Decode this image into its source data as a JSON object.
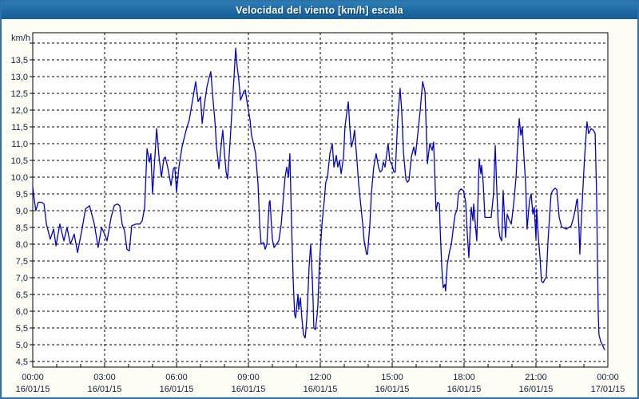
{
  "window": {
    "title": "Velocidad del viento [km/h] escala"
  },
  "colors": {
    "titlebar_top": "#2f7db5",
    "titlebar_bottom": "#175d93",
    "window_border": "#2a72a8",
    "background": "#fdfdf6",
    "plot_background": "#ffffff",
    "grid": "#000000",
    "series": "#0000cc",
    "label_text": "#0c2233",
    "title_text": "#ffffff"
  },
  "chart_data": {
    "type": "line",
    "title": "Velocidad del viento [km/h] escala",
    "y_unit_label": "km/h",
    "series_color": "#0000cc",
    "grid": "dashed",
    "legend": "none",
    "ylim": [
      4.5,
      14.0
    ],
    "y_step": 0.5,
    "x_hours_range": [
      0,
      24
    ],
    "x_minor_step_hours": 1,
    "y_unit": {
      "v": 14.0,
      "label": "km/h"
    },
    "y_ticks": [
      {
        "v": 13.5,
        "label": "13,5"
      },
      {
        "v": 13.0,
        "label": "13,0"
      },
      {
        "v": 12.5,
        "label": "12,5"
      },
      {
        "v": 12.0,
        "label": "12,0"
      },
      {
        "v": 11.5,
        "label": "11,5"
      },
      {
        "v": 11.0,
        "label": "11,0"
      },
      {
        "v": 10.5,
        "label": "10,5"
      },
      {
        "v": 10.0,
        "label": "10,0"
      },
      {
        "v": 9.5,
        "label": "9,5"
      },
      {
        "v": 9.0,
        "label": "9,0"
      },
      {
        "v": 8.5,
        "label": "8,5"
      },
      {
        "v": 8.0,
        "label": "8,0"
      },
      {
        "v": 7.5,
        "label": "7,5"
      },
      {
        "v": 7.0,
        "label": "7,0"
      },
      {
        "v": 6.5,
        "label": "6,5"
      },
      {
        "v": 6.0,
        "label": "6,0"
      },
      {
        "v": 5.5,
        "label": "5,5"
      },
      {
        "v": 5.0,
        "label": "5,0"
      },
      {
        "v": 4.5,
        "label": "4,5"
      }
    ],
    "x_ticks": [
      {
        "h": 0,
        "time": "00:00",
        "date": "16/01/15"
      },
      {
        "h": 3,
        "time": "03:00",
        "date": "16/01/15"
      },
      {
        "h": 6,
        "time": "06:00",
        "date": "16/01/15"
      },
      {
        "h": 9,
        "time": "09:00",
        "date": "16/01/15"
      },
      {
        "h": 12,
        "time": "12:00",
        "date": "16/01/15"
      },
      {
        "h": 15,
        "time": "15:00",
        "date": "16/01/15"
      },
      {
        "h": 18,
        "time": "18:00",
        "date": "16/01/15"
      },
      {
        "h": 21,
        "time": "21:00",
        "date": "16/01/15"
      },
      {
        "h": 24,
        "time": "00:00",
        "date": "17/01/15"
      }
    ],
    "points": [
      [
        0,
        9.7
      ],
      [
        0.07,
        9.3
      ],
      [
        0.13,
        9.0
      ],
      [
        0.23,
        9.25
      ],
      [
        0.37,
        9.25
      ],
      [
        0.47,
        9.2
      ],
      [
        0.57,
        8.6
      ],
      [
        0.73,
        8.15
      ],
      [
        0.87,
        8.45
      ],
      [
        0.97,
        7.95
      ],
      [
        1.13,
        8.6
      ],
      [
        1.3,
        8.1
      ],
      [
        1.43,
        8.5
      ],
      [
        1.57,
        8.0
      ],
      [
        1.73,
        8.3
      ],
      [
        1.87,
        7.75
      ],
      [
        2.07,
        8.5
      ],
      [
        2.2,
        9.05
      ],
      [
        2.37,
        9.15
      ],
      [
        2.57,
        8.6
      ],
      [
        2.73,
        7.9
      ],
      [
        2.87,
        8.5
      ],
      [
        3.0,
        8.3
      ],
      [
        3.1,
        8.1
      ],
      [
        3.27,
        8.8
      ],
      [
        3.4,
        9.15
      ],
      [
        3.53,
        9.2
      ],
      [
        3.63,
        9.15
      ],
      [
        3.73,
        8.6
      ],
      [
        3.83,
        8.4
      ],
      [
        3.93,
        7.85
      ],
      [
        4.03,
        7.8
      ],
      [
        4.13,
        8.55
      ],
      [
        4.3,
        8.6
      ],
      [
        4.47,
        8.6
      ],
      [
        4.57,
        8.7
      ],
      [
        4.67,
        9.1
      ],
      [
        4.77,
        10.85
      ],
      [
        4.87,
        10.45
      ],
      [
        4.93,
        10.7
      ],
      [
        5.0,
        9.5
      ],
      [
        5.17,
        11.45
      ],
      [
        5.27,
        10.6
      ],
      [
        5.37,
        10.0
      ],
      [
        5.47,
        10.55
      ],
      [
        5.53,
        10.6
      ],
      [
        5.63,
        10.3
      ],
      [
        5.77,
        9.75
      ],
      [
        5.87,
        10.25
      ],
      [
        5.93,
        10.3
      ],
      [
        6.0,
        9.55
      ],
      [
        6.1,
        10.3
      ],
      [
        6.23,
        10.9
      ],
      [
        6.4,
        11.4
      ],
      [
        6.53,
        11.7
      ],
      [
        6.67,
        12.3
      ],
      [
        6.8,
        12.85
      ],
      [
        6.9,
        12.25
      ],
      [
        7.0,
        12.4
      ],
      [
        7.07,
        11.6
      ],
      [
        7.17,
        12.2
      ],
      [
        7.27,
        12.7
      ],
      [
        7.37,
        13.0
      ],
      [
        7.43,
        13.15
      ],
      [
        7.53,
        12.25
      ],
      [
        7.6,
        11.7
      ],
      [
        7.67,
        10.9
      ],
      [
        7.77,
        10.25
      ],
      [
        7.87,
        11.0
      ],
      [
        7.93,
        11.4
      ],
      [
        8.0,
        10.7
      ],
      [
        8.07,
        10.15
      ],
      [
        8.13,
        9.95
      ],
      [
        8.23,
        11.0
      ],
      [
        8.33,
        12.2
      ],
      [
        8.4,
        13.0
      ],
      [
        8.47,
        13.85
      ],
      [
        8.53,
        13.3
      ],
      [
        8.6,
        12.9
      ],
      [
        8.67,
        12.3
      ],
      [
        8.73,
        12.4
      ],
      [
        8.8,
        12.55
      ],
      [
        8.87,
        12.6
      ],
      [
        8.93,
        12.3
      ],
      [
        9.0,
        12.0
      ],
      [
        9.07,
        11.7
      ],
      [
        9.13,
        11.25
      ],
      [
        9.23,
        10.95
      ],
      [
        9.3,
        10.7
      ],
      [
        9.4,
        9.8
      ],
      [
        9.47,
        8.6
      ],
      [
        9.53,
        8.0
      ],
      [
        9.63,
        8.05
      ],
      [
        9.7,
        7.85
      ],
      [
        9.77,
        8.0
      ],
      [
        9.87,
        9.25
      ],
      [
        9.9,
        9.3
      ],
      [
        10.0,
        8.15
      ],
      [
        10.07,
        7.9
      ],
      [
        10.17,
        8.0
      ],
      [
        10.27,
        8.1
      ],
      [
        10.37,
        8.6
      ],
      [
        10.47,
        9.5
      ],
      [
        10.53,
        10.0
      ],
      [
        10.6,
        10.3
      ],
      [
        10.67,
        10.0
      ],
      [
        10.73,
        10.7
      ],
      [
        10.8,
        8.6
      ],
      [
        10.87,
        6.9
      ],
      [
        10.93,
        5.9
      ],
      [
        10.97,
        5.8
      ],
      [
        11.07,
        6.5
      ],
      [
        11.1,
        6.05
      ],
      [
        11.17,
        6.4
      ],
      [
        11.23,
        5.8
      ],
      [
        11.3,
        5.3
      ],
      [
        11.37,
        5.2
      ],
      [
        11.43,
        5.7
      ],
      [
        11.47,
        6.25
      ],
      [
        11.53,
        7.3
      ],
      [
        11.6,
        8.0
      ],
      [
        11.67,
        6.9
      ],
      [
        11.7,
        6.3
      ],
      [
        11.73,
        5.5
      ],
      [
        11.8,
        5.45
      ],
      [
        11.87,
        5.9
      ],
      [
        11.9,
        6.2
      ],
      [
        11.97,
        7.5
      ],
      [
        12.07,
        8.6
      ],
      [
        12.17,
        9.35
      ],
      [
        12.23,
        9.85
      ],
      [
        12.3,
        10.0
      ],
      [
        12.4,
        10.7
      ],
      [
        12.5,
        11.0
      ],
      [
        12.57,
        10.3
      ],
      [
        12.67,
        10.65
      ],
      [
        12.73,
        10.3
      ],
      [
        12.8,
        10.5
      ],
      [
        12.87,
        10.1
      ],
      [
        12.97,
        10.6
      ],
      [
        13.03,
        11.5
      ],
      [
        13.1,
        11.9
      ],
      [
        13.17,
        12.25
      ],
      [
        13.23,
        11.5
      ],
      [
        13.3,
        10.9
      ],
      [
        13.37,
        11.1
      ],
      [
        13.43,
        11.4
      ],
      [
        13.53,
        10.5
      ],
      [
        13.6,
        9.8
      ],
      [
        13.7,
        9.1
      ],
      [
        13.77,
        8.6
      ],
      [
        13.83,
        8.1
      ],
      [
        13.93,
        7.7
      ],
      [
        13.97,
        7.7
      ],
      [
        14.07,
        8.6
      ],
      [
        14.13,
        9.5
      ],
      [
        14.23,
        10.3
      ],
      [
        14.33,
        10.7
      ],
      [
        14.43,
        10.3
      ],
      [
        14.5,
        10.15
      ],
      [
        14.57,
        10.2
      ],
      [
        14.63,
        10.45
      ],
      [
        14.7,
        10.3
      ],
      [
        14.83,
        11.0
      ],
      [
        14.9,
        10.5
      ],
      [
        15.0,
        10.35
      ],
      [
        15.07,
        10.15
      ],
      [
        15.13,
        10.15
      ],
      [
        15.23,
        11.7
      ],
      [
        15.33,
        12.65
      ],
      [
        15.4,
        11.95
      ],
      [
        15.47,
        10.75
      ],
      [
        15.57,
        9.95
      ],
      [
        15.63,
        9.85
      ],
      [
        15.7,
        9.9
      ],
      [
        15.8,
        10.6
      ],
      [
        15.9,
        10.9
      ],
      [
        15.97,
        10.65
      ],
      [
        16.07,
        11.3
      ],
      [
        16.17,
        12.0
      ],
      [
        16.27,
        12.85
      ],
      [
        16.37,
        12.55
      ],
      [
        16.47,
        10.4
      ],
      [
        16.57,
        11.0
      ],
      [
        16.67,
        10.8
      ],
      [
        16.73,
        11.05
      ],
      [
        16.83,
        9.0
      ],
      [
        16.9,
        9.25
      ],
      [
        16.97,
        9.2
      ],
      [
        17.0,
        8.5
      ],
      [
        17.07,
        7.3
      ],
      [
        17.13,
        6.7
      ],
      [
        17.2,
        6.8
      ],
      [
        17.23,
        6.6
      ],
      [
        17.3,
        7.4
      ],
      [
        17.4,
        7.8
      ],
      [
        17.47,
        8.0
      ],
      [
        17.57,
        8.6
      ],
      [
        17.63,
        8.9
      ],
      [
        17.7,
        9.0
      ],
      [
        17.77,
        9.55
      ],
      [
        17.87,
        9.65
      ],
      [
        17.97,
        9.6
      ],
      [
        18.07,
        9.25
      ],
      [
        18.13,
        8.35
      ],
      [
        18.2,
        7.6
      ],
      [
        18.3,
        9.1
      ],
      [
        18.37,
        8.7
      ],
      [
        18.4,
        9.2
      ],
      [
        18.47,
        8.6
      ],
      [
        18.53,
        8.1
      ],
      [
        18.63,
        10.55
      ],
      [
        18.7,
        10.1
      ],
      [
        18.73,
        10.35
      ],
      [
        18.8,
        9.8
      ],
      [
        18.87,
        8.8
      ],
      [
        18.97,
        8.8
      ],
      [
        19.07,
        8.8
      ],
      [
        19.13,
        8.8
      ],
      [
        19.23,
        9.5
      ],
      [
        19.3,
        10.95
      ],
      [
        19.37,
        9.55
      ],
      [
        19.43,
        8.55
      ],
      [
        19.5,
        8.2
      ],
      [
        19.57,
        8.1
      ],
      [
        19.63,
        9.6
      ],
      [
        19.73,
        8.2
      ],
      [
        19.8,
        8.9
      ],
      [
        19.87,
        8.75
      ],
      [
        19.97,
        8.6
      ],
      [
        20.07,
        9.2
      ],
      [
        20.17,
        10.0
      ],
      [
        20.23,
        10.9
      ],
      [
        20.3,
        11.75
      ],
      [
        20.37,
        11.25
      ],
      [
        20.43,
        11.5
      ],
      [
        20.5,
        10.6
      ],
      [
        20.57,
        9.8
      ],
      [
        20.63,
        8.45
      ],
      [
        20.73,
        9.3
      ],
      [
        20.8,
        9.5
      ],
      [
        20.87,
        8.9
      ],
      [
        20.93,
        9.1
      ],
      [
        21.0,
        8.15
      ],
      [
        21.03,
        9.05
      ],
      [
        21.1,
        8.2
      ],
      [
        21.17,
        7.6
      ],
      [
        21.23,
        6.9
      ],
      [
        21.3,
        6.85
      ],
      [
        21.37,
        6.95
      ],
      [
        21.43,
        7.0
      ],
      [
        21.5,
        8.05
      ],
      [
        21.57,
        8.85
      ],
      [
        21.63,
        9.5
      ],
      [
        21.7,
        9.6
      ],
      [
        21.8,
        9.67
      ],
      [
        21.87,
        9.63
      ],
      [
        21.97,
        8.8
      ],
      [
        22.07,
        8.52
      ],
      [
        22.17,
        8.48
      ],
      [
        22.27,
        8.45
      ],
      [
        22.37,
        8.5
      ],
      [
        22.47,
        8.55
      ],
      [
        22.57,
        8.8
      ],
      [
        22.63,
        9.0
      ],
      [
        22.7,
        9.3
      ],
      [
        22.73,
        9.35
      ],
      [
        22.8,
        8.4
      ],
      [
        22.83,
        7.7
      ],
      [
        22.9,
        8.8
      ],
      [
        22.97,
        9.8
      ],
      [
        23.03,
        10.6
      ],
      [
        23.13,
        11.65
      ],
      [
        23.2,
        11.3
      ],
      [
        23.3,
        11.45
      ],
      [
        23.4,
        11.4
      ],
      [
        23.47,
        11.3
      ],
      [
        23.53,
        9.5
      ],
      [
        23.57,
        7.4
      ],
      [
        23.6,
        5.9
      ],
      [
        23.63,
        5.3
      ],
      [
        23.7,
        5.1
      ],
      [
        23.77,
        5.0
      ],
      [
        23.83,
        4.9
      ],
      [
        23.87,
        4.85
      ]
    ]
  }
}
